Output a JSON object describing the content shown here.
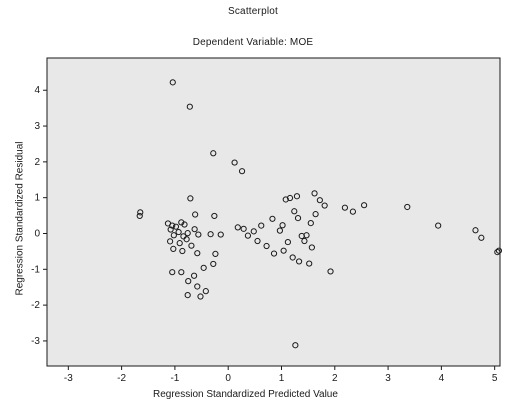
{
  "chart_data": {
    "type": "scatter",
    "title": "Scatterplot",
    "subtitle": "Dependent Variable: MOE",
    "xlabel": "Regression Standardized Predicted Value",
    "ylabel": "Regression Standardized Residual",
    "xlim": [
      -3.4,
      5.1
    ],
    "ylim": [
      -3.7,
      4.9
    ],
    "x_ticks": [
      -3,
      -2,
      -1,
      0,
      1,
      2,
      3,
      4,
      5
    ],
    "y_ticks": [
      -3,
      -2,
      -1,
      0,
      1,
      2,
      3,
      4
    ],
    "grid": false,
    "marker": "open-circle",
    "colors": {
      "plot_bg": "#e8e8e8",
      "marker": "#1a1a1a",
      "axis": "#1a1a1a"
    },
    "points": [
      {
        "x": -1.04,
        "y": 4.22
      },
      {
        "x": -0.72,
        "y": 3.54
      },
      {
        "x": -0.28,
        "y": 2.24
      },
      {
        "x": 0.12,
        "y": 1.98
      },
      {
        "x": 0.26,
        "y": 1.74
      },
      {
        "x": -1.65,
        "y": 0.59
      },
      {
        "x": -1.66,
        "y": 0.49
      },
      {
        "x": -0.71,
        "y": 0.98
      },
      {
        "x": -0.62,
        "y": 0.53
      },
      {
        "x": -0.26,
        "y": 0.49
      },
      {
        "x": -0.88,
        "y": 0.31
      },
      {
        "x": -1.13,
        "y": 0.28
      },
      {
        "x": -1.05,
        "y": 0.22
      },
      {
        "x": -0.98,
        "y": 0.19
      },
      {
        "x": -0.82,
        "y": 0.25
      },
      {
        "x": -1.08,
        "y": 0.11
      },
      {
        "x": -0.93,
        "y": 0.04
      },
      {
        "x": -0.76,
        "y": 0.01
      },
      {
        "x": -0.63,
        "y": 0.12
      },
      {
        "x": -1.02,
        "y": -0.05
      },
      {
        "x": -0.84,
        "y": -0.08
      },
      {
        "x": -0.56,
        "y": -0.03
      },
      {
        "x": -0.78,
        "y": -0.16
      },
      {
        "x": -1.09,
        "y": -0.22
      },
      {
        "x": -0.91,
        "y": -0.27
      },
      {
        "x": -0.69,
        "y": -0.34
      },
      {
        "x": -1.03,
        "y": -0.43
      },
      {
        "x": -0.86,
        "y": -0.49
      },
      {
        "x": -0.58,
        "y": -0.55
      },
      {
        "x": -0.33,
        "y": -0.02
      },
      {
        "x": -0.14,
        "y": -0.03
      },
      {
        "x": -0.24,
        "y": -0.57
      },
      {
        "x": -0.46,
        "y": -0.96
      },
      {
        "x": -0.28,
        "y": -0.85
      },
      {
        "x": -1.05,
        "y": -1.08
      },
      {
        "x": -0.88,
        "y": -1.08
      },
      {
        "x": -0.64,
        "y": -1.18
      },
      {
        "x": -0.75,
        "y": -1.33
      },
      {
        "x": -0.58,
        "y": -1.48
      },
      {
        "x": -0.76,
        "y": -1.72
      },
      {
        "x": -0.52,
        "y": -1.76
      },
      {
        "x": -0.42,
        "y": -1.61
      },
      {
        "x": 0.18,
        "y": 0.17
      },
      {
        "x": 0.29,
        "y": 0.13
      },
      {
        "x": 0.37,
        "y": -0.06
      },
      {
        "x": 0.48,
        "y": 0.06
      },
      {
        "x": 0.62,
        "y": 0.22
      },
      {
        "x": 0.83,
        "y": 0.41
      },
      {
        "x": 1.02,
        "y": 0.23
      },
      {
        "x": 1.24,
        "y": 0.62
      },
      {
        "x": 1.31,
        "y": 0.43
      },
      {
        "x": 0.55,
        "y": -0.21
      },
      {
        "x": 0.72,
        "y": -0.35
      },
      {
        "x": 0.86,
        "y": -0.56
      },
      {
        "x": 1.04,
        "y": -0.48
      },
      {
        "x": 1.12,
        "y": -0.24
      },
      {
        "x": 1.21,
        "y": -0.67
      },
      {
        "x": 1.33,
        "y": -0.78
      },
      {
        "x": 1.38,
        "y": -0.07
      },
      {
        "x": 1.47,
        "y": -0.05
      },
      {
        "x": 1.55,
        "y": 0.29
      },
      {
        "x": 1.64,
        "y": 0.54
      },
      {
        "x": 1.08,
        "y": 0.95
      },
      {
        "x": 1.16,
        "y": 0.99
      },
      {
        "x": 1.29,
        "y": 1.04
      },
      {
        "x": 1.62,
        "y": 1.12
      },
      {
        "x": 1.72,
        "y": 0.93
      },
      {
        "x": 1.81,
        "y": 0.78
      },
      {
        "x": 1.57,
        "y": -0.39
      },
      {
        "x": 1.43,
        "y": -0.21
      },
      {
        "x": 0.97,
        "y": 0.08
      },
      {
        "x": 1.52,
        "y": -0.84
      },
      {
        "x": 1.92,
        "y": -1.06
      },
      {
        "x": 2.19,
        "y": 0.72
      },
      {
        "x": 2.34,
        "y": 0.61
      },
      {
        "x": 2.55,
        "y": 0.79
      },
      {
        "x": 3.36,
        "y": 0.74
      },
      {
        "x": 3.94,
        "y": 0.22
      },
      {
        "x": 4.64,
        "y": 0.09
      },
      {
        "x": 4.75,
        "y": -0.12
      },
      {
        "x": 5.08,
        "y": -0.48
      },
      {
        "x": 5.05,
        "y": -0.52
      },
      {
        "x": 1.26,
        "y": -3.12
      }
    ]
  }
}
